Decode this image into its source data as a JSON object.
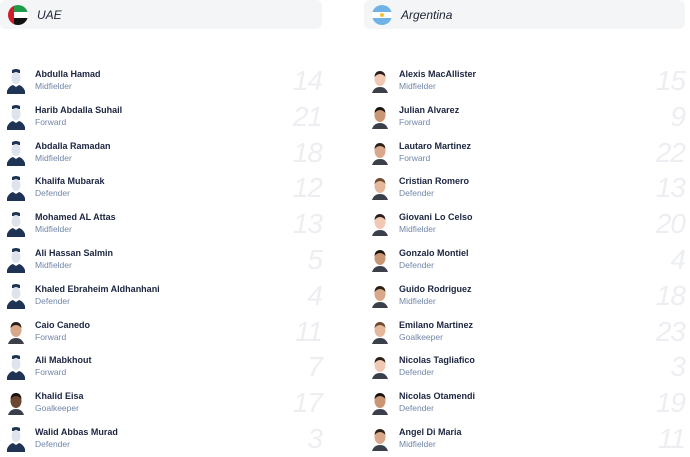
{
  "teams": [
    {
      "name": "UAE",
      "flag": "uae-flag",
      "players": [
        {
          "name": "Abdulla Hamad",
          "position": "Midfielder",
          "number": "14",
          "avatar": "silhouette"
        },
        {
          "name": "Harib Abdalla Suhail",
          "position": "Forward",
          "number": "21",
          "avatar": "silhouette"
        },
        {
          "name": "Abdalla Ramadan",
          "position": "Midfielder",
          "number": "18",
          "avatar": "silhouette"
        },
        {
          "name": "Khalifa Mubarak",
          "position": "Defender",
          "number": "12",
          "avatar": "silhouette"
        },
        {
          "name": "Mohamed AL Attas",
          "position": "Midfielder",
          "number": "13",
          "avatar": "silhouette"
        },
        {
          "name": "Ali Hassan Salmin",
          "position": "Midfielder",
          "number": "5",
          "avatar": "silhouette"
        },
        {
          "name": "Khaled Ebraheim Aldhanhani",
          "position": "Defender",
          "number": "4",
          "avatar": "silhouette"
        },
        {
          "name": "Caio Canedo",
          "position": "Forward",
          "number": "11",
          "avatar": "photo"
        },
        {
          "name": "Ali Mabkhout",
          "position": "Forward",
          "number": "7",
          "avatar": "silhouette"
        },
        {
          "name": "Khalid Eisa",
          "position": "Goalkeeper",
          "number": "17",
          "avatar": "photo"
        },
        {
          "name": "Walid Abbas Murad",
          "position": "Defender",
          "number": "3",
          "avatar": "silhouette"
        }
      ]
    },
    {
      "name": "Argentina",
      "flag": "argentina-flag",
      "players": [
        {
          "name": "Alexis MacAllister",
          "position": "Midfielder",
          "number": "15",
          "avatar": "photo"
        },
        {
          "name": "Julian Alvarez",
          "position": "Forward",
          "number": "9",
          "avatar": "photo"
        },
        {
          "name": "Lautaro Martinez",
          "position": "Forward",
          "number": "22",
          "avatar": "photo"
        },
        {
          "name": "Cristian Romero",
          "position": "Defender",
          "number": "13",
          "avatar": "photo"
        },
        {
          "name": "Giovani Lo Celso",
          "position": "Midfielder",
          "number": "20",
          "avatar": "photo"
        },
        {
          "name": "Gonzalo Montiel",
          "position": "Defender",
          "number": "4",
          "avatar": "photo"
        },
        {
          "name": "Guido Rodriguez",
          "position": "Midfielder",
          "number": "18",
          "avatar": "photo"
        },
        {
          "name": "Emilano Martinez",
          "position": "Goalkeeper",
          "number": "23",
          "avatar": "photo"
        },
        {
          "name": "Nicolas Tagliafico",
          "position": "Defender",
          "number": "3",
          "avatar": "photo"
        },
        {
          "name": "Nicolas Otamendi",
          "position": "Defender",
          "number": "19",
          "avatar": "photo"
        },
        {
          "name": "Angel Di Maria",
          "position": "Midfielder",
          "number": "11",
          "avatar": "photo"
        }
      ]
    }
  ],
  "colors": {
    "header_bg": "#f4f5f7",
    "name": "#1b2540",
    "position": "#7186a8",
    "number": "#eceef2",
    "silhouette": "#1f3355"
  }
}
